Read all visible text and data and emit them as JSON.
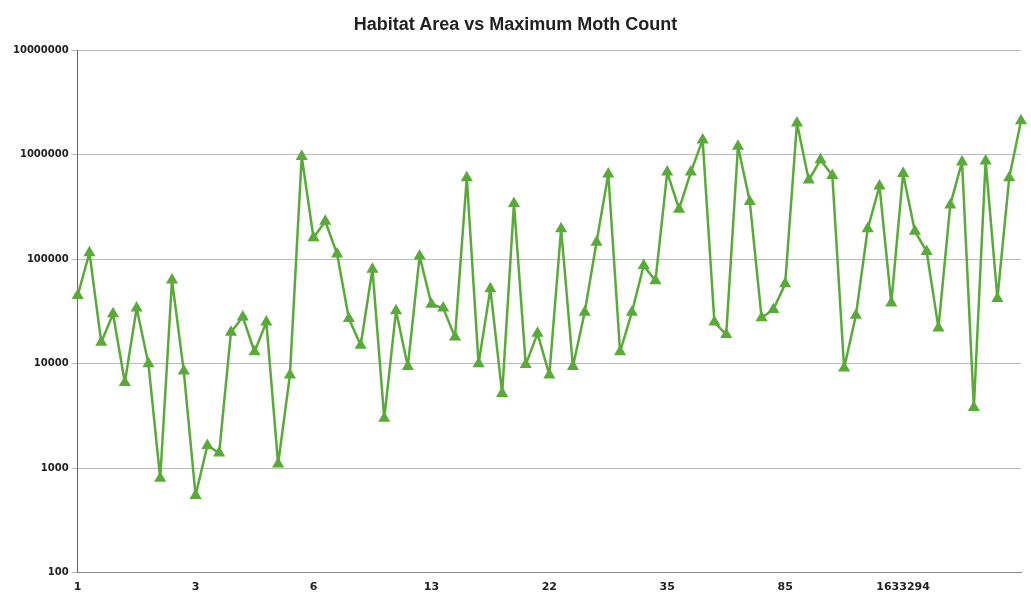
{
  "chart_data": {
    "type": "line",
    "title": "Habitat Area vs Maximum Moth Count",
    "categories": [
      "1",
      null,
      null,
      null,
      null,
      null,
      null,
      null,
      null,
      null,
      "3",
      null,
      null,
      null,
      null,
      null,
      null,
      null,
      null,
      null,
      "6",
      null,
      null,
      null,
      null,
      null,
      null,
      null,
      null,
      null,
      "13",
      null,
      null,
      null,
      null,
      null,
      null,
      null,
      null,
      null,
      "22",
      null,
      null,
      null,
      null,
      null,
      null,
      null,
      null,
      null,
      "35",
      null,
      null,
      null,
      null,
      null,
      null,
      null,
      null,
      null,
      "85",
      null,
      null,
      null,
      null,
      null,
      null,
      null,
      null,
      null,
      "1633294",
      null,
      null,
      null,
      null,
      null,
      null,
      null,
      null,
      null,
      null
    ],
    "series": [
      {
        "color": "#5aaa3a",
        "values": [
          45000,
          115000,
          16000,
          30000,
          6600,
          34000,
          10000,
          800,
          63000,
          8500,
          550,
          1650,
          1400,
          20000,
          28000,
          13000,
          25000,
          1100,
          7800,
          960000,
          160000,
          230000,
          112000,
          27000,
          15000,
          80000,
          3000,
          32000,
          9400,
          107000,
          37000,
          34000,
          18000,
          600000,
          10000,
          52000,
          5200,
          340000,
          9800,
          19500,
          7800,
          195000,
          9400,
          31000,
          145000,
          650000,
          13000,
          31000,
          87000,
          62000,
          680000,
          300000,
          680000,
          1380000,
          25000,
          19000,
          1200000,
          355000,
          27500,
          33000,
          58000,
          2000000,
          570000,
          890000,
          630000,
          9100,
          29000,
          195000,
          500000,
          38000,
          660000,
          185000,
          118000,
          22000,
          330000,
          850000,
          3800,
          870000,
          42000,
          600000,
          2100000
        ]
      }
    ],
    "log": true,
    "ylim": [
      100,
      10000000
    ],
    "yticks": [
      100,
      1000,
      10000,
      100000,
      1000000,
      10000000
    ],
    "grid": "y",
    "legend": false,
    "marker": "triangle",
    "line_style": "solid"
  }
}
